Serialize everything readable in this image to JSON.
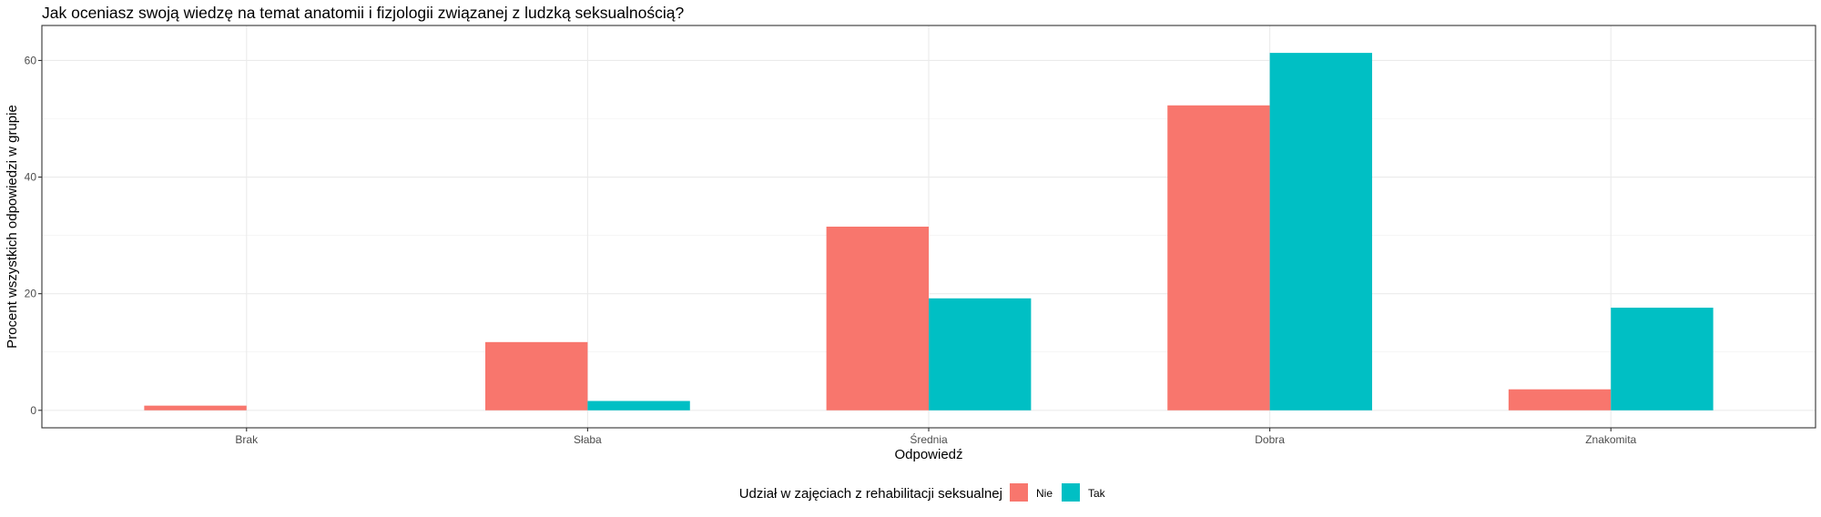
{
  "chart_data": {
    "type": "bar",
    "title": "Jak oceniasz swoją wiedzę na temat anatomii i fizjologii związanej z ludzką seksualnością?",
    "xlabel": "Odpowiedź",
    "ylabel": "Procent wszystkich odpowiedzi w grupie",
    "categories": [
      "Brak",
      "Słaba",
      "Średnia",
      "Dobra",
      "Znakomita"
    ],
    "series": [
      {
        "name": "Nie",
        "color": "#F8766D",
        "values": [
          0.8,
          11.7,
          31.5,
          52.3,
          3.6
        ]
      },
      {
        "name": "Tak",
        "color": "#00BFC4",
        "values": [
          0.0,
          1.6,
          19.2,
          61.3,
          17.6
        ]
      }
    ],
    "ylim": [
      -3,
      66
    ],
    "yticks": [
      0,
      20,
      40,
      60
    ],
    "grid": true,
    "legend": {
      "title": "Udział w zajęciach z rehabilitacji seksualnej",
      "position": "bottom"
    }
  }
}
